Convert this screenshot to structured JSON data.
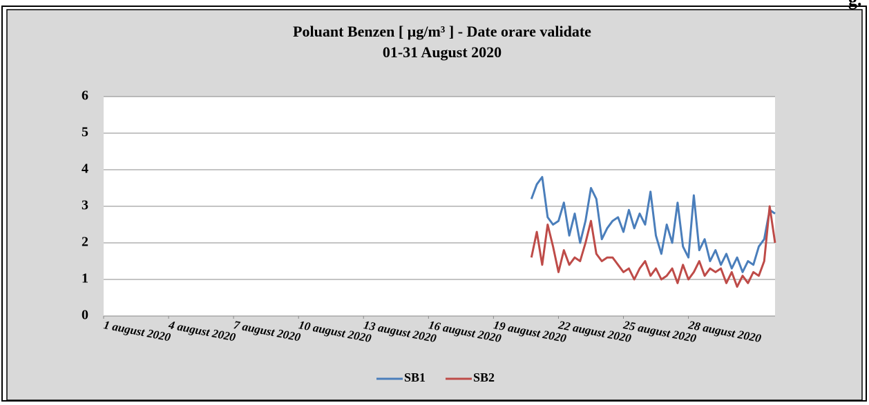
{
  "page_corner_text": "g.",
  "chart_data": {
    "type": "line",
    "title": "Poluant Benzen [ µg/m³ ] - Date orare validate",
    "subtitle": "01-31 August  2020",
    "x": [
      20.75,
      21,
      21.25,
      21.5,
      21.75,
      22,
      22.25,
      22.5,
      22.75,
      23,
      23.25,
      23.5,
      23.75,
      24,
      24.25,
      24.5,
      24.75,
      25,
      25.25,
      25.5,
      25.75,
      26,
      26.25,
      26.5,
      26.75,
      27,
      27.25,
      27.5,
      27.75,
      28,
      28.25,
      28.5,
      28.75,
      29,
      29.25,
      29.5,
      29.75,
      30,
      30.25,
      30.5,
      30.75,
      31,
      31.25,
      31.5,
      31.75,
      32
    ],
    "series": [
      {
        "name": "SB1",
        "color": "#4a7ebb",
        "values": [
          3.2,
          3.6,
          3.8,
          2.7,
          2.5,
          2.6,
          3.1,
          2.2,
          2.8,
          2.0,
          2.6,
          3.5,
          3.2,
          2.1,
          2.4,
          2.6,
          2.7,
          2.3,
          2.9,
          2.4,
          2.8,
          2.5,
          3.4,
          2.2,
          1.7,
          2.5,
          2.0,
          3.1,
          1.9,
          1.6,
          3.3,
          1.8,
          2.1,
          1.5,
          1.8,
          1.4,
          1.7,
          1.3,
          1.6,
          1.2,
          1.5,
          1.4,
          1.9,
          2.1,
          2.9,
          2.8
        ]
      },
      {
        "name": "SB2",
        "color": "#be4b48",
        "values": [
          1.6,
          2.3,
          1.4,
          2.5,
          1.9,
          1.2,
          1.8,
          1.4,
          1.6,
          1.5,
          2.0,
          2.6,
          1.7,
          1.5,
          1.6,
          1.6,
          1.4,
          1.2,
          1.3,
          1.0,
          1.3,
          1.5,
          1.1,
          1.3,
          1.0,
          1.1,
          1.3,
          0.9,
          1.4,
          1.0,
          1.2,
          1.5,
          1.1,
          1.3,
          1.2,
          1.3,
          0.9,
          1.2,
          0.8,
          1.1,
          0.9,
          1.2,
          1.1,
          1.5,
          3.0,
          2.0
        ]
      }
    ],
    "xlim": [
      1,
      32
    ],
    "xticks": [
      {
        "value": 1,
        "label": "1 august 2020"
      },
      {
        "value": 4,
        "label": "4 august 2020"
      },
      {
        "value": 7,
        "label": "7 august 2020"
      },
      {
        "value": 10,
        "label": "10 august 2020"
      },
      {
        "value": 13,
        "label": "13 august 2020"
      },
      {
        "value": 16,
        "label": "16 august 2020"
      },
      {
        "value": 19,
        "label": "19 august 2020"
      },
      {
        "value": 22,
        "label": "22 august 2020"
      },
      {
        "value": 25,
        "label": "25 august 2020"
      },
      {
        "value": 28,
        "label": "28 august 2020"
      }
    ],
    "ylim": [
      0,
      6
    ],
    "yticks": [
      0,
      1,
      2,
      3,
      4,
      5,
      6
    ],
    "grid": true,
    "legend": "bottom"
  }
}
